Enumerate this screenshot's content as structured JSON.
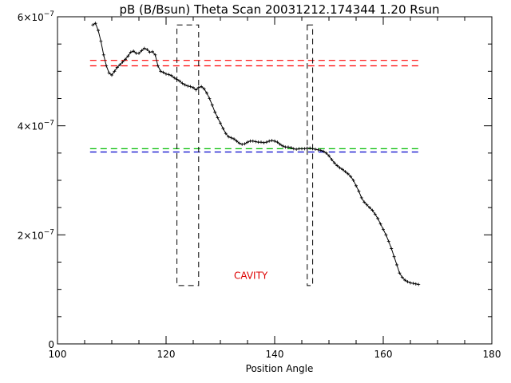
{
  "chart_data": {
    "type": "line",
    "title": "pB (B/Bsun) Theta Scan 20031212.174344 1.20 Rsun",
    "xlabel": "Position Angle",
    "ylabel": "",
    "xlim": [
      100,
      180
    ],
    "ylim": [
      0,
      6e-07
    ],
    "grid": false,
    "x_ticks": [
      {
        "value": 100,
        "label": "100"
      },
      {
        "value": 120,
        "label": "120"
      },
      {
        "value": 140,
        "label": "140"
      },
      {
        "value": 160,
        "label": "160"
      },
      {
        "value": 180,
        "label": "180"
      }
    ],
    "y_ticks": [
      {
        "value": 0,
        "label": "0",
        "exp": ""
      },
      {
        "value": 2e-07,
        "label": "2×10",
        "exp": "−7"
      },
      {
        "value": 4e-07,
        "label": "4×10",
        "exp": "−7"
      },
      {
        "value": 6e-07,
        "label": "6×10",
        "exp": "−7"
      }
    ],
    "series": [
      {
        "color": "#000000",
        "x": [
          106.5,
          107.0,
          107.5,
          108.0,
          108.5,
          109.0,
          109.5,
          110.0,
          110.5,
          111.0,
          111.5,
          112.0,
          112.5,
          113.0,
          113.5,
          114.0,
          114.5,
          115.0,
          115.5,
          116.0,
          116.5,
          117.0,
          117.5,
          118.0,
          118.5,
          119.0,
          119.5,
          120.0,
          120.5,
          121.0,
          121.5,
          122.0,
          122.5,
          123.0,
          123.5,
          124.0,
          124.5,
          125.0,
          125.5,
          126.0,
          126.5,
          127.0,
          127.5,
          128.0,
          128.5,
          129.0,
          129.5,
          130.0,
          130.5,
          131.0,
          131.5,
          132.0,
          132.5,
          133.0,
          133.5,
          134.0,
          134.5,
          135.0,
          135.5,
          136.0,
          136.5,
          137.0,
          137.5,
          138.0,
          138.5,
          139.0,
          139.5,
          140.0,
          140.5,
          141.0,
          141.5,
          142.0,
          142.5,
          143.0,
          143.5,
          144.0,
          144.5,
          145.0,
          145.5,
          146.0,
          146.5,
          147.0,
          147.5,
          148.0,
          148.5,
          149.0,
          149.5,
          150.0,
          150.5,
          151.0,
          151.5,
          152.0,
          152.5,
          153.0,
          153.5,
          154.0,
          154.5,
          155.0,
          155.5,
          156.0,
          156.5,
          157.0,
          157.5,
          158.0,
          158.5,
          159.0,
          159.5,
          160.0,
          160.5,
          161.0,
          161.5,
          162.0,
          162.5,
          163.0,
          163.5,
          164.0,
          164.5,
          165.0,
          165.5,
          166.0,
          166.5
        ],
        "y": [
          5.85e-07,
          5.88e-07,
          5.75e-07,
          5.55e-07,
          5.3e-07,
          5.1e-07,
          4.97e-07,
          4.93e-07,
          5e-07,
          5.07e-07,
          5.12e-07,
          5.17e-07,
          5.22e-07,
          5.28e-07,
          5.35e-07,
          5.37e-07,
          5.33e-07,
          5.33e-07,
          5.38e-07,
          5.42e-07,
          5.4e-07,
          5.35e-07,
          5.36e-07,
          5.3e-07,
          5.1e-07,
          5e-07,
          4.98e-07,
          4.95e-07,
          4.94e-07,
          4.92e-07,
          4.88e-07,
          4.85e-07,
          4.82e-07,
          4.78e-07,
          4.75e-07,
          4.73e-07,
          4.72e-07,
          4.7e-07,
          4.66e-07,
          4.7e-07,
          4.72e-07,
          4.68e-07,
          4.6e-07,
          4.5e-07,
          4.38e-07,
          4.25e-07,
          4.15e-07,
          4.05e-07,
          3.95e-07,
          3.86e-07,
          3.8e-07,
          3.78e-07,
          3.76e-07,
          3.72e-07,
          3.68e-07,
          3.66e-07,
          3.67e-07,
          3.7e-07,
          3.72e-07,
          3.72e-07,
          3.71e-07,
          3.7e-07,
          3.7e-07,
          3.69e-07,
          3.7e-07,
          3.72e-07,
          3.73e-07,
          3.72e-07,
          3.7e-07,
          3.66e-07,
          3.63e-07,
          3.61e-07,
          3.61e-07,
          3.6e-07,
          3.58e-07,
          3.57e-07,
          3.58e-07,
          3.58e-07,
          3.58e-07,
          3.59e-07,
          3.59e-07,
          3.58e-07,
          3.57e-07,
          3.56e-07,
          3.55e-07,
          3.53e-07,
          3.5e-07,
          3.45e-07,
          3.38e-07,
          3.32e-07,
          3.27e-07,
          3.23e-07,
          3.2e-07,
          3.16e-07,
          3.12e-07,
          3.07e-07,
          3e-07,
          2.9e-07,
          2.8e-07,
          2.68e-07,
          2.6e-07,
          2.55e-07,
          2.5e-07,
          2.45e-07,
          2.38e-07,
          2.3e-07,
          2.2e-07,
          2.1e-07,
          2e-07,
          1.88e-07,
          1.75e-07,
          1.6e-07,
          1.45e-07,
          1.3e-07,
          1.22e-07,
          1.17e-07,
          1.14e-07,
          1.12e-07,
          1.11e-07,
          1.1e-07,
          1.09e-07
        ]
      }
    ],
    "reference_lines": [
      {
        "y": 5.2e-07,
        "color": "#ff0000",
        "style": "dashed"
      },
      {
        "y": 5.1e-07,
        "color": "#ff0000",
        "style": "dashed"
      },
      {
        "y": 3.58e-07,
        "color": "#00bb00",
        "style": "dashed"
      },
      {
        "y": 3.52e-07,
        "color": "#0000cc",
        "style": "dashed"
      }
    ],
    "regions": [
      {
        "x0": 122.0,
        "x1": 126.0,
        "y0": 1.07e-07,
        "y1": 5.85e-07,
        "color": "#000000",
        "style": "dashed"
      },
      {
        "x0": 146.0,
        "x1": 147.0,
        "y0": 1.07e-07,
        "y1": 5.85e-07,
        "color": "#000000",
        "style": "dashed"
      }
    ],
    "annotations": [
      {
        "text": "CAVITY",
        "x": 132.5,
        "y": 1.25e-07,
        "color": "#dd0000"
      }
    ]
  }
}
